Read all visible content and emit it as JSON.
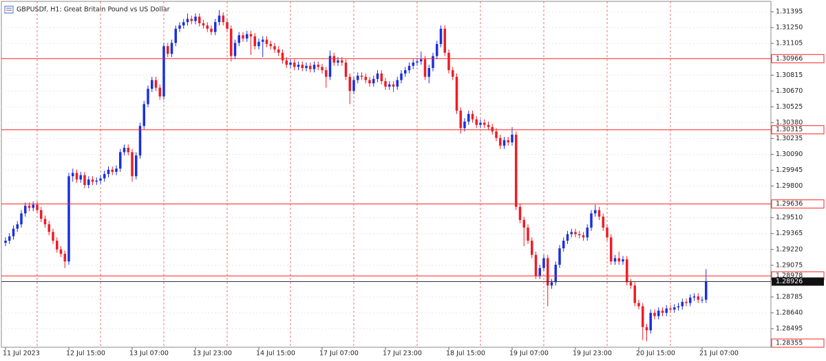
{
  "chart_data": {
    "type": "candlestick",
    "title": "GBPUSDf, H1:  Great Britain Pound vs US Dollar",
    "categories": [
      "11 Jul 2023",
      null,
      null,
      null,
      null,
      null,
      null,
      null,
      null,
      null,
      null,
      null,
      null,
      null,
      null,
      null,
      "12 Jul 15:00",
      null,
      null,
      null,
      null,
      null,
      null,
      null,
      null,
      null,
      null,
      null,
      null,
      null,
      null,
      null,
      "13 Jul 07:00",
      null,
      null,
      null,
      null,
      null,
      null,
      null,
      null,
      null,
      null,
      null,
      null,
      null,
      null,
      null,
      "13 Jul 23:00",
      null,
      null,
      null,
      null,
      null,
      null,
      null,
      null,
      null,
      null,
      null,
      null,
      null,
      null,
      null,
      "14 Jul 15:00",
      null,
      null,
      null,
      null,
      null,
      null,
      null,
      null,
      null,
      null,
      null,
      null,
      null,
      null,
      null,
      "17 Jul 07:00",
      null,
      null,
      null,
      null,
      null,
      null,
      null,
      null,
      null,
      null,
      null,
      null,
      null,
      null,
      null,
      "17 Jul 23:00",
      null,
      null,
      null,
      null,
      null,
      null,
      null,
      null,
      null,
      null,
      null,
      null,
      null,
      null,
      null,
      "18 Jul 15:00",
      null,
      null,
      null,
      null,
      null,
      null,
      null,
      null,
      null,
      null,
      null,
      null,
      null,
      null,
      null,
      "19 Jul 07:00",
      null,
      null,
      null,
      null,
      null,
      null,
      null,
      null,
      null,
      null,
      null,
      null,
      null,
      null,
      null,
      "19 Jul 23:00",
      null,
      null,
      null,
      null,
      null,
      null,
      null,
      null,
      null,
      null,
      null,
      null,
      null,
      null,
      null,
      "20 Jul 15:00",
      null,
      null,
      null,
      null,
      null,
      null,
      null,
      null,
      null,
      null,
      null,
      null,
      null,
      null,
      null,
      "21 Jul 07:00",
      null
    ],
    "open": [
      1.2928,
      1.293,
      1.2934,
      1.2941,
      1.2945,
      1.2955,
      1.2962,
      1.296,
      1.2963,
      1.2958,
      1.295,
      1.2945,
      1.2938,
      1.293,
      1.2922,
      1.2918,
      1.2911,
      1.2989,
      1.2992,
      1.2986,
      1.299,
      1.2981,
      1.2986,
      1.2984,
      1.2985,
      1.2987,
      1.2991,
      1.2995,
      1.2993,
      1.2996,
      1.3011,
      1.3015,
      1.3011,
      1.2989,
      1.3008,
      1.3035,
      1.3055,
      1.3069,
      1.3077,
      1.307,
      1.3062,
      1.3108,
      1.3101,
      1.3111,
      1.3124,
      1.3127,
      1.313,
      1.3133,
      1.3131,
      1.3135,
      1.3129,
      1.3127,
      1.3124,
      1.3121,
      1.313,
      1.3136,
      1.313,
      1.3124,
      1.3099,
      1.3111,
      1.3118,
      1.3115,
      1.3119,
      1.3117,
      1.3108,
      1.3112,
      1.3114,
      1.311,
      1.3108,
      1.3105,
      1.3102,
      1.3095,
      1.3091,
      1.3093,
      1.3089,
      1.3091,
      1.3088,
      1.309,
      1.3087,
      1.3091,
      1.3089,
      1.3086,
      1.308,
      1.3099,
      1.3093,
      1.3095,
      1.3093,
      1.308,
      1.3067,
      1.3077,
      1.3081,
      1.308,
      1.3077,
      1.3074,
      1.3078,
      1.3083,
      1.3076,
      1.3071,
      1.3073,
      1.3071,
      1.3077,
      1.3083,
      1.3086,
      1.309,
      1.3093,
      1.3094,
      1.3096,
      1.308,
      1.3088,
      1.3099,
      1.311,
      1.3124,
      1.3102,
      1.3086,
      1.308,
      1.3049,
      1.3033,
      1.3039,
      1.3046,
      1.3041,
      1.3036,
      1.3038,
      1.3036,
      1.3034,
      1.303,
      1.3024,
      1.3017,
      1.3022,
      1.302,
      1.3027,
      1.2961,
      1.2949,
      1.2942,
      1.293,
      1.2917,
      1.2898,
      1.2905,
      1.2914,
      1.2889,
      1.2892,
      1.2908,
      1.2923,
      1.293,
      1.2936,
      1.2938,
      1.2936,
      1.2935,
      1.2933,
      1.2942,
      1.2955,
      1.2958,
      1.2952,
      1.2942,
      1.2933,
      1.2911,
      1.2914,
      1.2911,
      1.2913,
      1.2892,
      1.2889,
      1.2873,
      1.287,
      1.2851,
      1.2848,
      1.2864,
      1.2861,
      1.2866,
      1.2864,
      1.2868,
      1.2867,
      1.2869,
      1.287,
      1.2874,
      1.2873,
      1.2878,
      1.2879,
      1.2876,
      1.2876
    ],
    "high": [
      1.2933,
      1.2937,
      1.2944,
      1.2948,
      1.2958,
      1.2965,
      1.2965,
      1.2966,
      1.2966,
      1.2961,
      1.2953,
      1.2948,
      1.2941,
      1.2933,
      1.2925,
      1.2921,
      1.2992,
      1.2996,
      1.2995,
      1.2993,
      1.2993,
      1.2989,
      1.2989,
      1.2988,
      1.299,
      1.2994,
      1.2998,
      1.2998,
      1.2999,
      1.3014,
      1.3018,
      1.3018,
      1.3014,
      1.3011,
      1.3038,
      1.3058,
      1.3072,
      1.308,
      1.308,
      1.3073,
      1.3111,
      1.3111,
      1.3114,
      1.3127,
      1.313,
      1.3133,
      1.3138,
      1.3136,
      1.3138,
      1.3138,
      1.3132,
      1.313,
      1.3127,
      1.3133,
      1.3141,
      1.3139,
      1.3133,
      1.3127,
      1.3114,
      1.3121,
      1.3121,
      1.3122,
      1.3122,
      1.312,
      1.3115,
      1.3117,
      1.3117,
      1.3113,
      1.3111,
      1.3108,
      1.3105,
      1.3098,
      1.3096,
      1.3096,
      1.3094,
      1.3094,
      1.3093,
      1.3093,
      1.3094,
      1.3094,
      1.3092,
      1.3089,
      1.3104,
      1.3102,
      1.3098,
      1.3098,
      1.3096,
      1.3083,
      1.308,
      1.3084,
      1.3084,
      1.3083,
      1.308,
      1.3081,
      1.3086,
      1.3086,
      1.3079,
      1.3076,
      1.3076,
      1.308,
      1.3086,
      1.3089,
      1.3093,
      1.3096,
      1.3097,
      1.3103,
      1.3099,
      1.3091,
      1.3102,
      1.3113,
      1.3127,
      1.3127,
      1.3105,
      1.3089,
      1.3083,
      1.3052,
      1.3042,
      1.3049,
      1.3049,
      1.3044,
      1.3041,
      1.3041,
      1.3039,
      1.3037,
      1.3033,
      1.3027,
      1.3025,
      1.3025,
      1.3034,
      1.303,
      1.2964,
      1.2952,
      1.2945,
      1.2933,
      1.292,
      1.2908,
      1.2917,
      1.2917,
      1.2895,
      1.2911,
      1.2926,
      1.2933,
      1.2939,
      1.2941,
      1.2941,
      1.2939,
      1.2938,
      1.2945,
      1.2958,
      1.2963,
      1.2961,
      1.2955,
      1.2945,
      1.2936,
      1.2917,
      1.292,
      1.2916,
      1.2916,
      1.2895,
      1.2892,
      1.2876,
      1.2873,
      1.2854,
      1.2867,
      1.2867,
      1.2869,
      1.2869,
      1.2871,
      1.2871,
      1.2872,
      1.2873,
      1.2877,
      1.2877,
      1.2881,
      1.2882,
      1.2882,
      1.2879,
      1.2904
    ],
    "low": [
      1.2925,
      1.2927,
      1.2931,
      1.2938,
      1.2942,
      1.2952,
      1.2957,
      1.2957,
      1.2955,
      1.2947,
      1.2942,
      1.2935,
      1.2927,
      1.2919,
      1.2915,
      1.2905,
      1.2908,
      1.2984,
      1.2983,
      1.2983,
      1.2978,
      1.2978,
      1.2981,
      1.2981,
      1.2982,
      1.2984,
      1.2988,
      1.299,
      1.299,
      1.2993,
      1.3008,
      1.3008,
      1.2984,
      1.2986,
      1.3005,
      1.3032,
      1.3052,
      1.3066,
      1.3067,
      1.3059,
      1.3059,
      1.3098,
      1.3098,
      1.3108,
      1.3121,
      1.3124,
      1.3127,
      1.3128,
      1.3128,
      1.3126,
      1.3124,
      1.3121,
      1.3118,
      1.3118,
      1.3127,
      1.3127,
      1.3121,
      1.3094,
      1.3096,
      1.3108,
      1.3112,
      1.3112,
      1.31,
      1.3105,
      1.3105,
      1.3098,
      1.3107,
      1.3105,
      1.3102,
      1.3099,
      1.3092,
      1.3088,
      1.3088,
      1.3086,
      1.3086,
      1.3085,
      1.3085,
      1.3084,
      1.3084,
      1.3086,
      1.3083,
      1.307,
      1.3077,
      1.309,
      1.309,
      1.309,
      1.3077,
      1.3055,
      1.3064,
      1.3074,
      1.3077,
      1.3074,
      1.3071,
      1.3071,
      1.3075,
      1.3073,
      1.3068,
      1.3068,
      1.3066,
      1.3068,
      1.3074,
      1.308,
      1.3083,
      1.3087,
      1.309,
      1.3091,
      1.3077,
      1.3074,
      1.3085,
      1.3096,
      1.3107,
      1.3099,
      1.3083,
      1.3077,
      1.3046,
      1.3028,
      1.303,
      1.3036,
      1.3038,
      1.3033,
      1.3033,
      1.3033,
      1.3031,
      1.3027,
      1.3021,
      1.3014,
      1.3014,
      1.3017,
      1.3017,
      1.2958,
      1.2946,
      1.2925,
      1.2927,
      1.2914,
      1.2895,
      1.2895,
      1.2902,
      1.287,
      1.2886,
      1.2889,
      1.2905,
      1.292,
      1.2927,
      1.2933,
      1.2933,
      1.2932,
      1.293,
      1.293,
      1.2939,
      1.2952,
      1.2949,
      1.2939,
      1.293,
      1.2908,
      1.2908,
      1.2908,
      1.2908,
      1.2889,
      1.2886,
      1.287,
      1.2867,
      1.2839,
      1.2838,
      1.2845,
      1.2858,
      1.2858,
      1.2861,
      1.2861,
      1.2864,
      1.2864,
      1.2866,
      1.2867,
      1.287,
      1.287,
      1.2875,
      1.2873,
      1.2873,
      1.2873
    ],
    "close": [
      1.293,
      1.2934,
      1.2941,
      1.2945,
      1.2955,
      1.2962,
      1.296,
      1.2963,
      1.2958,
      1.295,
      1.2945,
      1.2938,
      1.293,
      1.2922,
      1.2918,
      1.2911,
      1.2989,
      1.2992,
      1.2986,
      1.299,
      1.2981,
      1.2986,
      1.2984,
      1.2985,
      1.2987,
      1.2991,
      1.2995,
      1.2993,
      1.2996,
      1.3011,
      1.3015,
      1.3011,
      1.2989,
      1.3008,
      1.3035,
      1.3055,
      1.3069,
      1.3077,
      1.307,
      1.3062,
      1.3108,
      1.3101,
      1.3111,
      1.3124,
      1.3127,
      1.313,
      1.3133,
      1.3131,
      1.3135,
      1.3129,
      1.3127,
      1.3124,
      1.3121,
      1.313,
      1.3136,
      1.313,
      1.3124,
      1.3099,
      1.3111,
      1.3118,
      1.3115,
      1.3119,
      1.3117,
      1.3108,
      1.3112,
      1.3114,
      1.311,
      1.3108,
      1.3105,
      1.3102,
      1.3095,
      1.3091,
      1.3093,
      1.3089,
      1.3091,
      1.3088,
      1.309,
      1.3087,
      1.3091,
      1.3089,
      1.3086,
      1.308,
      1.3099,
      1.3093,
      1.3095,
      1.3093,
      1.308,
      1.3067,
      1.3077,
      1.3081,
      1.308,
      1.3077,
      1.3074,
      1.3078,
      1.3083,
      1.3076,
      1.3071,
      1.3073,
      1.3071,
      1.3077,
      1.3083,
      1.3086,
      1.309,
      1.3093,
      1.3094,
      1.3096,
      1.308,
      1.3088,
      1.3099,
      1.311,
      1.3124,
      1.3102,
      1.3086,
      1.308,
      1.3049,
      1.3033,
      1.3039,
      1.3046,
      1.3041,
      1.3036,
      1.3038,
      1.3036,
      1.3034,
      1.303,
      1.3024,
      1.3017,
      1.3022,
      1.302,
      1.3027,
      1.2961,
      1.2949,
      1.2942,
      1.293,
      1.2917,
      1.2898,
      1.2905,
      1.2914,
      1.2889,
      1.2892,
      1.2908,
      1.2923,
      1.293,
      1.2936,
      1.2938,
      1.2936,
      1.2935,
      1.2933,
      1.2942,
      1.2955,
      1.2958,
      1.2952,
      1.2942,
      1.2933,
      1.2911,
      1.2914,
      1.2911,
      1.2913,
      1.2892,
      1.2889,
      1.2873,
      1.287,
      1.2851,
      1.2848,
      1.2864,
      1.2861,
      1.2866,
      1.2864,
      1.2868,
      1.2867,
      1.2869,
      1.287,
      1.2874,
      1.2873,
      1.2878,
      1.2879,
      1.2876,
      1.2876,
      1.28926
    ],
    "up_color": "#1a2fe0",
    "down_color": "#ee1c25",
    "ylim": [
      1.28325,
      1.3149
    ],
    "yticks": [
      1.31395,
      {
        "value": 1.3125,
        "label": "1.31250"
      },
      1.31105,
      1.30815,
      {
        "value": 1.3067,
        "label": "1.30670"
      },
      1.30525,
      {
        "value": 1.3038,
        "label": "1.30380"
      },
      1.30235,
      {
        "value": 1.3009,
        "label": "1.30090"
      },
      1.29945,
      {
        "value": 1.298,
        "label": "1.29800"
      },
      {
        "value": 1.2951,
        "label": "1.29510"
      },
      1.29365,
      {
        "value": 1.2922,
        "label": "1.29220"
      },
      1.29075,
      1.28785,
      {
        "value": 1.2864,
        "label": "1.28640"
      },
      1.28495
    ],
    "grid": true,
    "levels": [
      1.30966,
      1.30315,
      1.29636,
      1.28978
    ],
    "level_color": "#ff2020",
    "current_price": 1.28926,
    "low_marker": 1.28355
  }
}
